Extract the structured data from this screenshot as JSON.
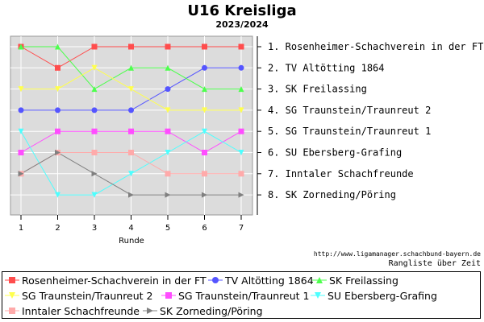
{
  "title": "U16 Kreisliga",
  "subtitle": "2023/2024",
  "url_note": "http://www.ligamanager.schachbund-bayern.de",
  "chart_note": "Rangliste über Zeit",
  "chart_data": {
    "type": "line",
    "title": "U16 Kreisliga",
    "subtitle": "2023/2024",
    "xlabel": "Runde",
    "ylabel": "",
    "x": [
      1,
      2,
      3,
      4,
      5,
      6,
      7
    ],
    "xlim": [
      0.7,
      7.3
    ],
    "ylim": [
      1,
      8
    ],
    "y_inverted": true,
    "grid": true,
    "legend_position": "bottom",
    "right_labels": [
      "1. Rosenheimer-Schachverein in der FT",
      "2. TV Altötting 1864",
      "3. SK Freilassing",
      "4. SG Traunstein/Traunreut 2",
      "5. SG Traunstein/Traunreut 1",
      "6. SU Ebersberg-Grafing",
      "7. Inntaler Schachfreunde",
      "8. SK Zorneding/Pöring"
    ],
    "series": [
      {
        "name": "Rosenheimer-Schachverein in der FT",
        "color": "#ff4d4d",
        "marker": "square",
        "values": [
          1,
          2,
          1,
          1,
          1,
          1,
          1
        ]
      },
      {
        "name": "TV Altötting 1864",
        "color": "#5555ff",
        "marker": "circle",
        "values": [
          4,
          4,
          4,
          4,
          3,
          2,
          2
        ]
      },
      {
        "name": "SK Freilassing",
        "color": "#4dff4d",
        "marker": "triangle-up",
        "values": [
          1,
          1,
          3,
          2,
          2,
          3,
          3
        ]
      },
      {
        "name": "SG Traunstein/Traunreut 2",
        "color": "#ffff4d",
        "marker": "triangle-down",
        "values": [
          3,
          3,
          2,
          3,
          4,
          4,
          4
        ]
      },
      {
        "name": "SG Traunstein/Traunreut 1",
        "color": "#ff4dff",
        "marker": "square",
        "values": [
          6,
          5,
          5,
          5,
          5,
          6,
          5
        ]
      },
      {
        "name": "SU Ebersberg-Grafing",
        "color": "#4dffff",
        "marker": "triangle-down",
        "values": [
          5,
          8,
          8,
          7,
          6,
          5,
          6
        ]
      },
      {
        "name": "Inntaler Schachfreunde",
        "color": "#ffaaaa",
        "marker": "square",
        "values": [
          7,
          6,
          6,
          6,
          7,
          7,
          7
        ]
      },
      {
        "name": "SK Zorneding/Pöring",
        "color": "#808080",
        "marker": "triangle-right",
        "values": [
          7,
          6,
          7,
          8,
          8,
          8,
          8
        ]
      }
    ]
  }
}
